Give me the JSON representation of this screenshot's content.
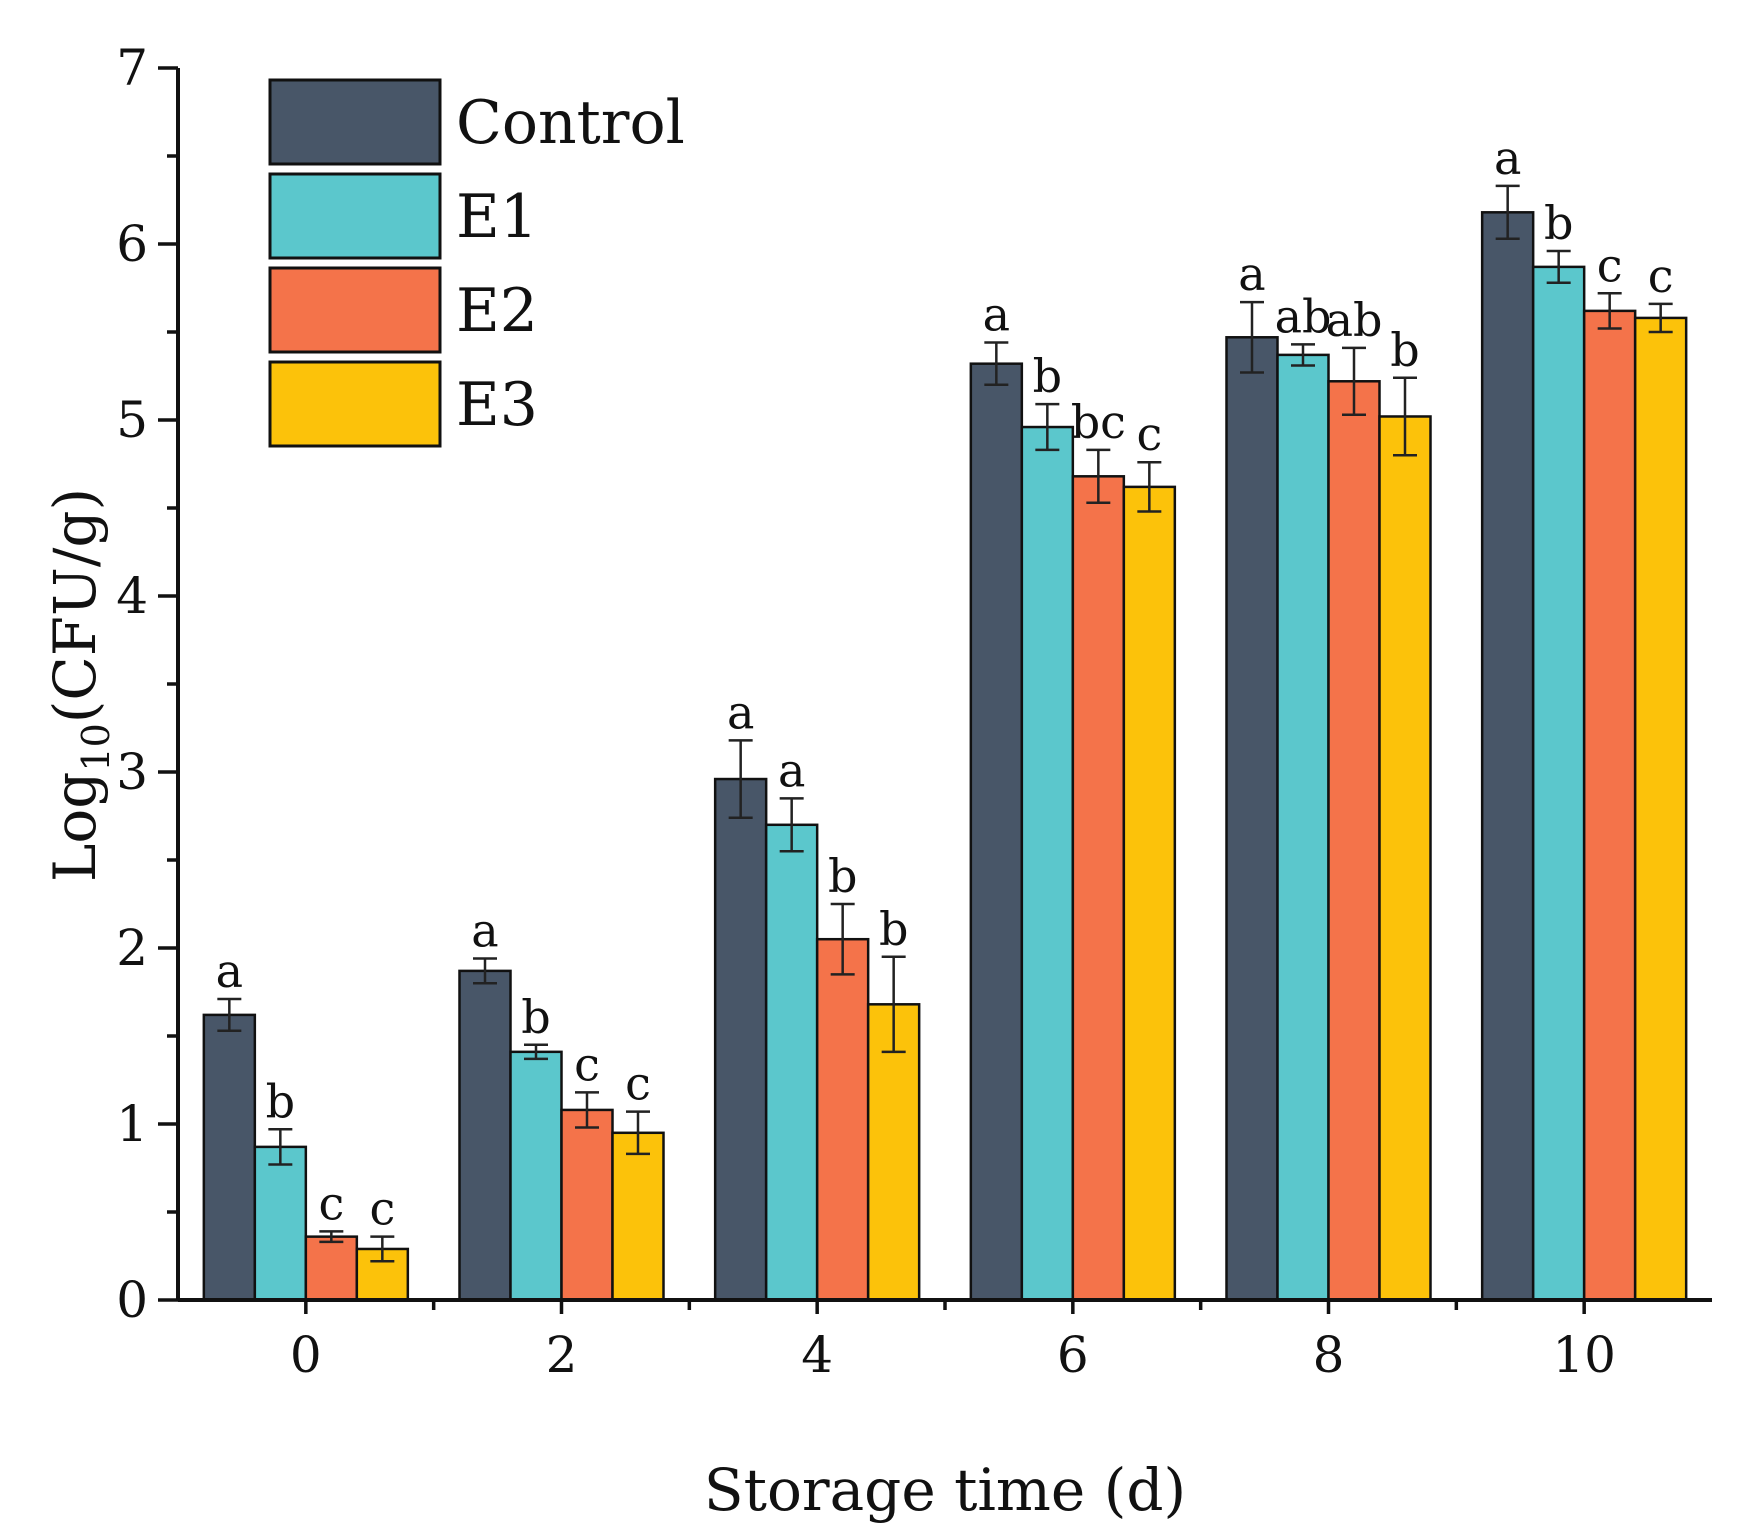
{
  "chart_data": {
    "type": "bar",
    "title": "",
    "xlabel": "Storage time (d)",
    "ylabel_main": "Log",
    "ylabel_sub": "10",
    "ylabel_rest": "(CFU/g)",
    "ylim": [
      0,
      7
    ],
    "yticks": [
      "0",
      "1",
      "2",
      "3",
      "4",
      "5",
      "6",
      "7"
    ],
    "categories": [
      "0",
      "2",
      "4",
      "6",
      "8",
      "10"
    ],
    "legend_position": "top-left",
    "grid": false,
    "series": [
      {
        "name": "Control",
        "color": "#485668",
        "values": [
          1.62,
          1.87,
          2.96,
          5.32,
          5.47,
          6.18
        ],
        "errors": [
          0.09,
          0.07,
          0.22,
          0.12,
          0.2,
          0.15
        ],
        "letters": [
          "a",
          "a",
          "a",
          "a",
          "a",
          "a"
        ]
      },
      {
        "name": "E1",
        "color": "#5bc7cc",
        "values": [
          0.87,
          1.41,
          2.7,
          4.96,
          5.37,
          5.87
        ],
        "errors": [
          0.1,
          0.04,
          0.15,
          0.13,
          0.06,
          0.09
        ],
        "letters": [
          "b",
          "b",
          "a",
          "b",
          "ab",
          "b"
        ]
      },
      {
        "name": "E2",
        "color": "#f4734a",
        "values": [
          0.36,
          1.08,
          2.05,
          4.68,
          5.22,
          5.62
        ],
        "errors": [
          0.03,
          0.1,
          0.2,
          0.15,
          0.19,
          0.1
        ],
        "letters": [
          "c",
          "c",
          "b",
          "bc",
          "ab",
          "c"
        ]
      },
      {
        "name": "E3",
        "color": "#fcc20a",
        "values": [
          0.29,
          0.95,
          1.68,
          4.62,
          5.02,
          5.58
        ],
        "errors": [
          0.07,
          0.12,
          0.27,
          0.14,
          0.22,
          0.08
        ],
        "letters": [
          "c",
          "c",
          "b",
          "c",
          "b",
          "c"
        ]
      }
    ]
  }
}
